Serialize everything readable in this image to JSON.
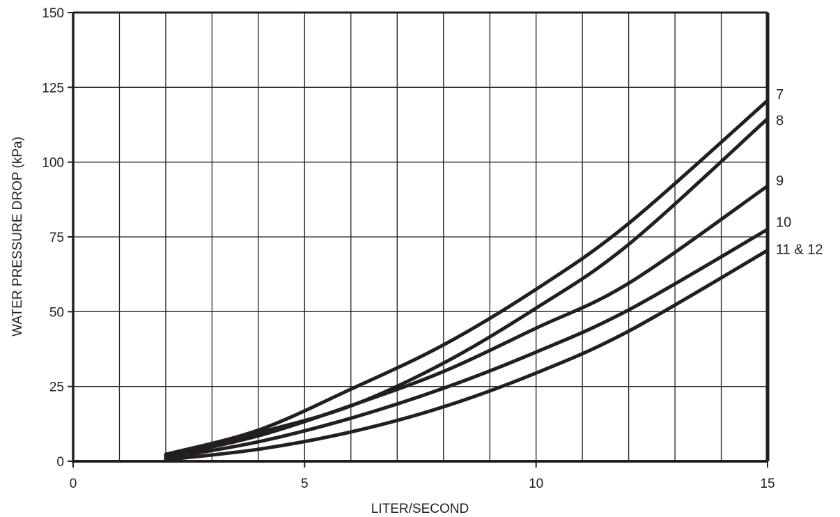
{
  "chart_data": {
    "type": "line",
    "title": "",
    "xlabel": "LITER/SECOND",
    "ylabel": "WATER PRESSURE DROP (kPa)",
    "xlim": [
      0,
      15
    ],
    "ylim": [
      0,
      150
    ],
    "xticks": [
      0,
      5,
      10,
      15
    ],
    "yticks": [
      0,
      25,
      50,
      75,
      100,
      125,
      150
    ],
    "x_grid_step": 1,
    "y_grid_step": 25,
    "grid": true,
    "line_color": "#231f20",
    "series": [
      {
        "name": "7",
        "x": [
          2,
          4,
          6,
          8,
          10,
          12,
          15
        ],
        "y": [
          2.3,
          10.4,
          24.1,
          38.9,
          57.5,
          79.5,
          120.6
        ]
      },
      {
        "name": "8",
        "x": [
          2,
          4,
          6,
          8,
          10,
          12,
          15
        ],
        "y": [
          1.8,
          9.5,
          18.5,
          32.8,
          51.2,
          72.5,
          114.5
        ]
      },
      {
        "name": "9",
        "x": [
          2,
          4,
          6,
          8,
          10,
          12,
          15
        ],
        "y": [
          1.5,
          8.5,
          18.6,
          30.0,
          44.5,
          59.5,
          92.0
        ]
      },
      {
        "name": "10",
        "x": [
          2,
          4,
          6,
          8,
          10,
          12,
          15
        ],
        "y": [
          1.0,
          6.5,
          14.4,
          24.4,
          36.5,
          50.6,
          77.5
        ]
      },
      {
        "name": "11 & 12",
        "x": [
          2,
          4,
          6,
          8,
          10,
          12,
          15
        ],
        "y": [
          0.5,
          4.0,
          9.8,
          18.2,
          29.5,
          43.5,
          70.5
        ]
      }
    ]
  }
}
